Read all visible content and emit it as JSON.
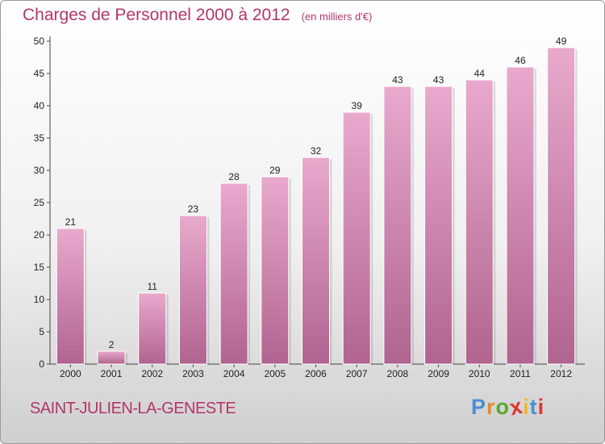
{
  "header": {
    "title": "Charges de Personnel 2000 à 2012",
    "subtitle": "(en milliers d'€)"
  },
  "footer": {
    "location": "SAINT-JULIEN-LA-GENESTE",
    "brand": "Proxiti"
  },
  "colors": {
    "title": "#b1366a",
    "bar_top": "#e9a9cd",
    "bar_bottom": "#b0648f",
    "brand_letters": [
      "#4a8fd4",
      "#e88a2a",
      "#5aa832",
      "#e2352d",
      "#f0b823",
      "#4a8fd4",
      "#e2352d"
    ]
  },
  "chart_data": {
    "type": "bar",
    "categories": [
      "2000",
      "2001",
      "2002",
      "2003",
      "2004",
      "2005",
      "2006",
      "2007",
      "2008",
      "2009",
      "2010",
      "2011",
      "2012"
    ],
    "values": [
      21,
      2,
      11,
      23,
      28,
      29,
      32,
      39,
      43,
      43,
      44,
      46,
      49
    ],
    "yticks": [
      0,
      5,
      10,
      15,
      20,
      25,
      30,
      35,
      40,
      45,
      50
    ],
    "ylim": [
      0,
      50
    ],
    "grid": false,
    "legend": "none",
    "xlabel": "",
    "ylabel": ""
  }
}
